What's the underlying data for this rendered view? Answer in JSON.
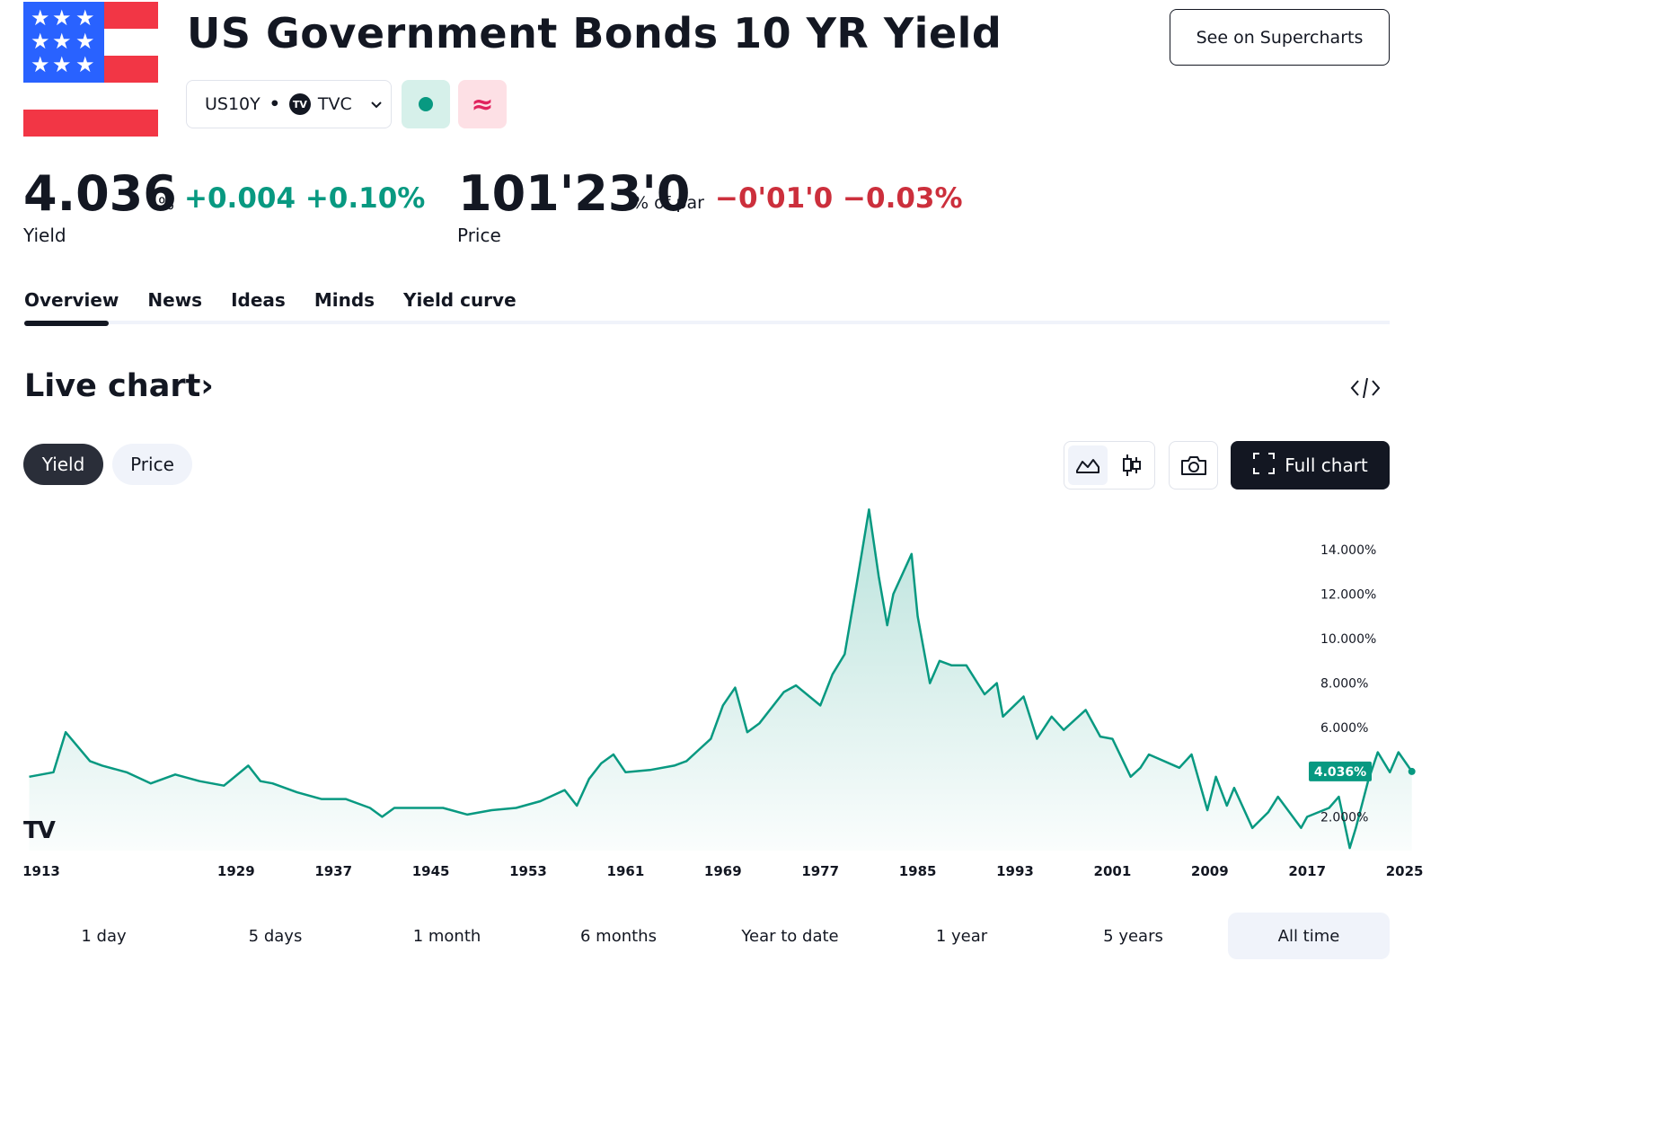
{
  "header": {
    "title": "US Government Bonds 10 YR Yield",
    "supercharts_label": "See on Supercharts",
    "symbol": "US10Y",
    "separator": "•",
    "exchange_logo": "TV",
    "exchange": "TVC",
    "market_status_icon": "dot-icon",
    "delay_icon": "≈"
  },
  "quote": {
    "yield_value": "4.036",
    "yield_unit": "%",
    "yield_change": "+0.004 +0.10%",
    "yield_label": "Yield",
    "price_value": "101'23'0",
    "price_unit": "% of par",
    "price_change": "−0'01'0 −0.03%",
    "price_label": "Price",
    "up_color": "#089981",
    "down_color": "#cc2f3c"
  },
  "tabs": [
    {
      "label": "Overview",
      "active": true
    },
    {
      "label": "News"
    },
    {
      "label": "Ideas"
    },
    {
      "label": "Minds"
    },
    {
      "label": "Yield curve"
    }
  ],
  "section": {
    "title": "Live chart",
    "arrow": "›",
    "embed_icon": "code-icon"
  },
  "toolbar": {
    "mode_yield": "Yield",
    "mode_price": "Price",
    "active_mode": "Yield",
    "full_chart_label": "Full chart"
  },
  "time_ranges": [
    "1 day",
    "5 days",
    "1 month",
    "6 months",
    "Year to date",
    "1 year",
    "5 years",
    "All time"
  ],
  "active_range": "All time",
  "chart_data": {
    "type": "area",
    "x": [
      1912,
      1914,
      1915,
      1917,
      1918,
      1920,
      1922,
      1924,
      1926,
      1928,
      1930,
      1931,
      1932,
      1934,
      1936,
      1938,
      1940,
      1941,
      1942,
      1944,
      1946,
      1948,
      1950,
      1952,
      1954,
      1956,
      1957,
      1958,
      1959,
      1960,
      1961,
      1963,
      1965,
      1966,
      1967,
      1968,
      1969,
      1970,
      1971,
      1972,
      1974,
      1975,
      1977,
      1978,
      1979,
      1980,
      1981,
      1981.8,
      1982.5,
      1983,
      1984.5,
      1985,
      1986,
      1986.8,
      1987.8,
      1989,
      1990.5,
      1991.5,
      1992,
      1993.7,
      1994.8,
      1996,
      1997,
      1998.8,
      2000,
      2001,
      2002.5,
      2003.3,
      2004,
      2006.5,
      2007.5,
      2008.8,
      2009.5,
      2010.4,
      2011,
      2012.5,
      2013.8,
      2014.6,
      2016.5,
      2017,
      2018.8,
      2019.6,
      2020.5,
      2021,
      2022,
      2022.8,
      2023.8,
      2024.5,
      2025.6
    ],
    "values": [
      3.8,
      4.0,
      5.8,
      4.5,
      4.3,
      4.0,
      3.5,
      3.9,
      3.6,
      3.4,
      4.3,
      3.6,
      3.5,
      3.1,
      2.8,
      2.8,
      2.4,
      2.0,
      2.4,
      2.4,
      2.4,
      2.1,
      2.3,
      2.4,
      2.7,
      3.2,
      2.5,
      3.7,
      4.4,
      4.8,
      4.0,
      4.1,
      4.3,
      4.5,
      5.0,
      5.5,
      7.0,
      7.8,
      5.8,
      6.2,
      7.6,
      7.9,
      7.0,
      8.4,
      9.3,
      12.5,
      15.8,
      12.8,
      10.6,
      12.0,
      13.8,
      11.0,
      8.0,
      9.0,
      8.8,
      8.8,
      7.5,
      8.0,
      6.5,
      7.4,
      5.5,
      6.5,
      5.9,
      6.8,
      5.6,
      5.5,
      3.8,
      4.2,
      4.8,
      4.2,
      4.8,
      2.3,
      3.8,
      2.5,
      3.3,
      1.5,
      2.2,
      2.9,
      1.5,
      2.0,
      2.4,
      2.9,
      0.6,
      1.5,
      3.6,
      4.9,
      4.0,
      4.9,
      4.036
    ],
    "xlabel": "",
    "ylabel": "",
    "ylim": [
      0,
      16
    ],
    "y_ticks": [
      "2.000%",
      "4.000%",
      "6.000%",
      "8.000%",
      "10.000%",
      "12.000%",
      "14.000%"
    ],
    "x_ticks": [
      "1913",
      "1929",
      "1937",
      "1945",
      "1953",
      "1961",
      "1969",
      "1977",
      "1985",
      "1993",
      "2001",
      "2009",
      "2017",
      "2025"
    ],
    "last_value_label": "4.036%",
    "line_color": "#089981",
    "grid": false,
    "watermark": "TV"
  }
}
